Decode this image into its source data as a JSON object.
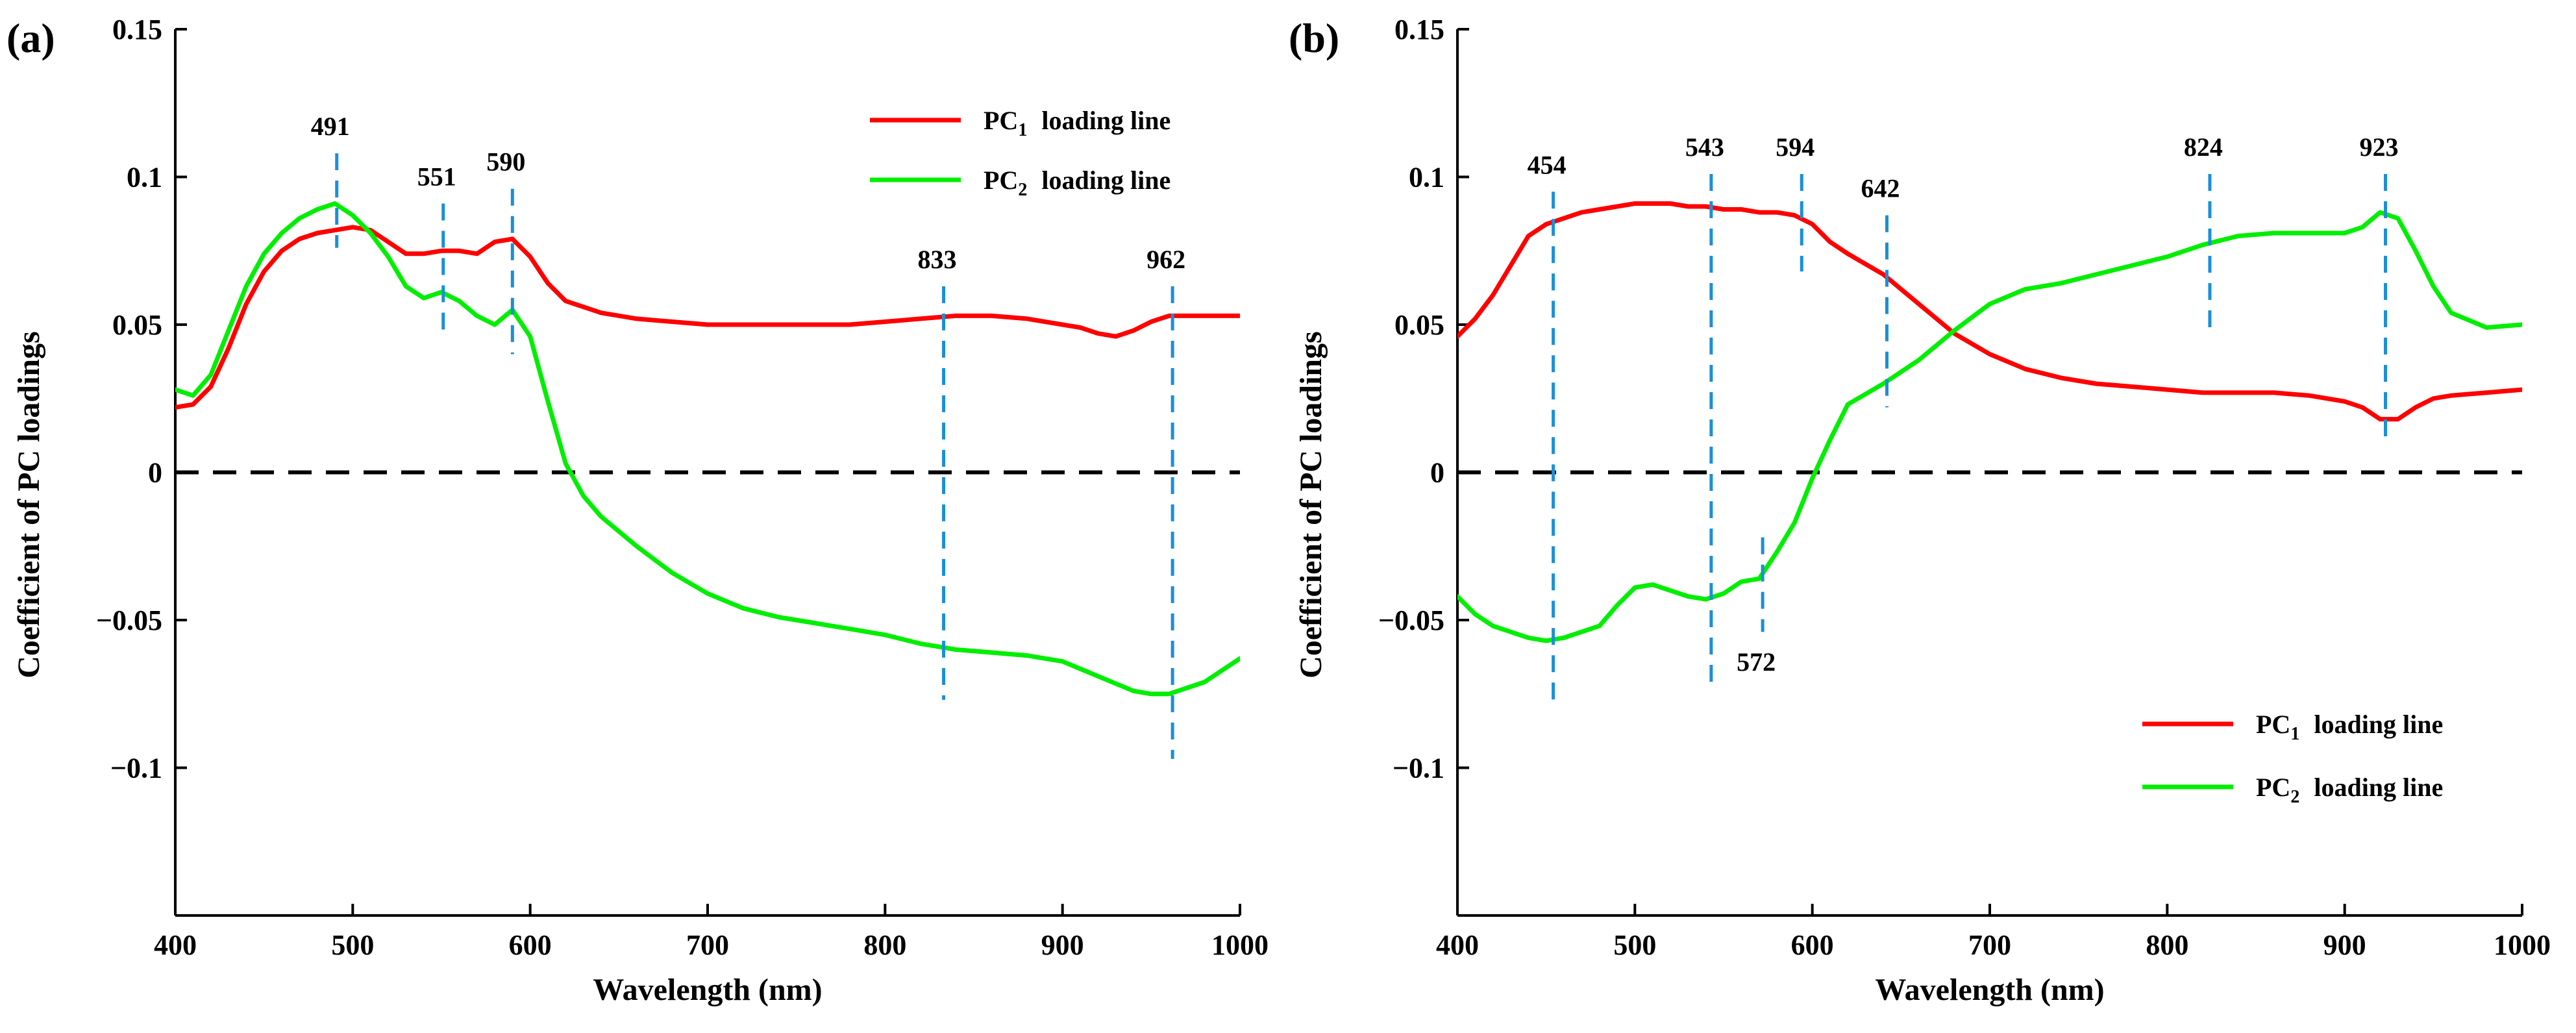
{
  "figure": {
    "panels": [
      {
        "label": "(a)",
        "xlabel": "Wavelength (nm)",
        "ylabel": "Coefficient of PC loadings"
      },
      {
        "label": "(b)",
        "xlabel": "Wavelength (nm)",
        "ylabel": "Coefficient of PC loadings"
      }
    ]
  },
  "chart_data": [
    {
      "type": "line",
      "panel_label": "(a)",
      "title": "",
      "xlabel": "Wavelength (nm)",
      "ylabel": "Coefficient of PC loadings",
      "xlim": [
        400,
        1000
      ],
      "ylim": [
        -0.15,
        0.15
      ],
      "xticks": [
        400,
        500,
        600,
        700,
        800,
        900,
        1000
      ],
      "yticks": [
        -0.1,
        -0.05,
        0,
        0.05,
        0.1,
        0.15
      ],
      "ytick_labels": [
        "−0.1",
        "−0.05",
        "0",
        "0.05",
        "0.1",
        "0.15"
      ],
      "legend_position": "top-right",
      "series": [
        {
          "name": "PC1 loading line",
          "legend_main": "PC",
          "legend_sub": "1",
          "legend_rest": "loading line",
          "color": "#ff0000",
          "x": [
            400,
            410,
            420,
            430,
            440,
            450,
            460,
            470,
            480,
            490,
            500,
            510,
            520,
            530,
            540,
            550,
            560,
            570,
            580,
            590,
            600,
            610,
            620,
            640,
            660,
            680,
            700,
            720,
            740,
            760,
            780,
            800,
            820,
            840,
            860,
            880,
            900,
            910,
            920,
            930,
            940,
            950,
            960,
            980,
            1000
          ],
          "y": [
            0.022,
            0.023,
            0.029,
            0.042,
            0.057,
            0.068,
            0.075,
            0.079,
            0.081,
            0.082,
            0.083,
            0.082,
            0.078,
            0.074,
            0.074,
            0.075,
            0.075,
            0.074,
            0.078,
            0.079,
            0.073,
            0.064,
            0.058,
            0.054,
            0.052,
            0.051,
            0.05,
            0.05,
            0.05,
            0.05,
            0.05,
            0.051,
            0.052,
            0.053,
            0.053,
            0.052,
            0.05,
            0.049,
            0.047,
            0.046,
            0.048,
            0.051,
            0.053,
            0.053,
            0.053
          ]
        },
        {
          "name": "PC2 loading line",
          "legend_main": "PC",
          "legend_sub": "2",
          "legend_rest": "loading line",
          "color": "#00ee00",
          "x": [
            400,
            410,
            420,
            430,
            440,
            450,
            460,
            470,
            480,
            490,
            500,
            510,
            520,
            530,
            540,
            550,
            560,
            570,
            580,
            590,
            600,
            610,
            620,
            630,
            640,
            660,
            680,
            700,
            720,
            740,
            760,
            780,
            800,
            820,
            840,
            860,
            880,
            900,
            920,
            940,
            950,
            960,
            980,
            1000
          ],
          "y": [
            0.028,
            0.026,
            0.033,
            0.048,
            0.063,
            0.074,
            0.081,
            0.086,
            0.089,
            0.091,
            0.087,
            0.081,
            0.073,
            0.063,
            0.059,
            0.061,
            0.058,
            0.053,
            0.05,
            0.055,
            0.046,
            0.024,
            0.003,
            -0.008,
            -0.015,
            -0.025,
            -0.034,
            -0.041,
            -0.046,
            -0.049,
            -0.051,
            -0.053,
            -0.055,
            -0.058,
            -0.06,
            -0.061,
            -0.062,
            -0.064,
            -0.069,
            -0.074,
            -0.075,
            -0.075,
            -0.071,
            -0.063
          ]
        }
      ],
      "annotations": [
        {
          "label": "491",
          "x": 491,
          "y_top": 0.108,
          "y_bottom": 0.076,
          "label_position": "above"
        },
        {
          "label": "551",
          "x": 551,
          "y_top": 0.091,
          "y_bottom": 0.047,
          "label_position": "above"
        },
        {
          "label": "590",
          "x": 590,
          "y_top": 0.096,
          "y_bottom": 0.04,
          "label_position": "above"
        },
        {
          "label": "833",
          "x": 833,
          "y_top": 0.063,
          "y_bottom": -0.077,
          "label_position": "above"
        },
        {
          "label": "962",
          "x": 962,
          "y_top": 0.063,
          "y_bottom": -0.097,
          "label_position": "above"
        }
      ],
      "zero_line": {
        "y": 0,
        "style": "dashed",
        "color": "#000000"
      }
    },
    {
      "type": "line",
      "panel_label": "(b)",
      "title": "",
      "xlabel": "Wavelength (nm)",
      "ylabel": "Coefficient of PC loadings",
      "xlim": [
        400,
        1000
      ],
      "ylim": [
        -0.15,
        0.15
      ],
      "xticks": [
        400,
        500,
        600,
        700,
        800,
        900,
        1000
      ],
      "yticks": [
        -0.1,
        -0.05,
        0,
        0.05,
        0.1,
        0.15
      ],
      "ytick_labels": [
        "−0.1",
        "−0.05",
        "0",
        "0.05",
        "0.1",
        "0.15"
      ],
      "legend_position": "bottom-right",
      "series": [
        {
          "name": "PC1 loading line",
          "legend_main": "PC",
          "legend_sub": "1",
          "legend_rest": "loading line",
          "color": "#ff0000",
          "x": [
            400,
            410,
            420,
            430,
            440,
            450,
            460,
            470,
            480,
            490,
            500,
            510,
            520,
            530,
            540,
            550,
            560,
            570,
            580,
            590,
            600,
            610,
            620,
            640,
            660,
            680,
            700,
            720,
            740,
            760,
            780,
            800,
            820,
            840,
            860,
            880,
            900,
            910,
            920,
            930,
            940,
            950,
            960,
            980,
            1000
          ],
          "y": [
            0.046,
            0.052,
            0.06,
            0.07,
            0.08,
            0.084,
            0.086,
            0.088,
            0.089,
            0.09,
            0.091,
            0.091,
            0.091,
            0.09,
            0.09,
            0.089,
            0.089,
            0.088,
            0.088,
            0.087,
            0.084,
            0.078,
            0.074,
            0.067,
            0.057,
            0.047,
            0.04,
            0.035,
            0.032,
            0.03,
            0.029,
            0.028,
            0.027,
            0.027,
            0.027,
            0.026,
            0.024,
            0.022,
            0.018,
            0.018,
            0.022,
            0.025,
            0.026,
            0.027,
            0.028
          ]
        },
        {
          "name": "PC2 loading line",
          "legend_main": "PC",
          "legend_sub": "2",
          "legend_rest": "loading line",
          "color": "#00ee00",
          "x": [
            400,
            410,
            420,
            430,
            440,
            450,
            460,
            470,
            480,
            490,
            500,
            510,
            520,
            530,
            540,
            550,
            560,
            570,
            580,
            590,
            600,
            610,
            620,
            640,
            660,
            680,
            700,
            720,
            740,
            760,
            780,
            800,
            820,
            840,
            860,
            880,
            900,
            910,
            920,
            930,
            940,
            950,
            960,
            980,
            1000
          ],
          "y": [
            -0.042,
            -0.048,
            -0.052,
            -0.054,
            -0.056,
            -0.057,
            -0.056,
            -0.054,
            -0.052,
            -0.045,
            -0.039,
            -0.038,
            -0.04,
            -0.042,
            -0.043,
            -0.041,
            -0.037,
            -0.036,
            -0.027,
            -0.017,
            -0.002,
            0.011,
            0.023,
            0.03,
            0.038,
            0.048,
            0.057,
            0.062,
            0.064,
            0.067,
            0.07,
            0.073,
            0.077,
            0.08,
            0.081,
            0.081,
            0.081,
            0.083,
            0.088,
            0.086,
            0.075,
            0.063,
            0.054,
            0.049,
            0.05
          ]
        }
      ],
      "annotations": [
        {
          "label": "454",
          "x": 454,
          "y_top": 0.095,
          "y_bottom": -0.077,
          "label_position": "above"
        },
        {
          "label": "543",
          "x": 543,
          "y_top": 0.101,
          "y_bottom": -0.072,
          "label_position": "above"
        },
        {
          "label": "594",
          "x": 594,
          "y_top": 0.101,
          "y_bottom": 0.068,
          "label_position": "above"
        },
        {
          "label": "642",
          "x": 642,
          "y_top": 0.087,
          "y_bottom": 0.022,
          "label_position": "above"
        },
        {
          "label": "824",
          "x": 824,
          "y_top": 0.101,
          "y_bottom": 0.048,
          "label_position": "above"
        },
        {
          "label": "923",
          "x": 923,
          "y_top": 0.101,
          "y_bottom": 0.01,
          "label_position": "above"
        },
        {
          "label": "572",
          "x": 572,
          "y_top": -0.022,
          "y_bottom": -0.054,
          "label_position": "below"
        }
      ],
      "zero_line": {
        "y": 0,
        "style": "dashed",
        "color": "#000000"
      }
    }
  ],
  "colors": {
    "annotation_line": "#1a8fd8",
    "axis": "#000000",
    "zero_line": "#000000"
  }
}
